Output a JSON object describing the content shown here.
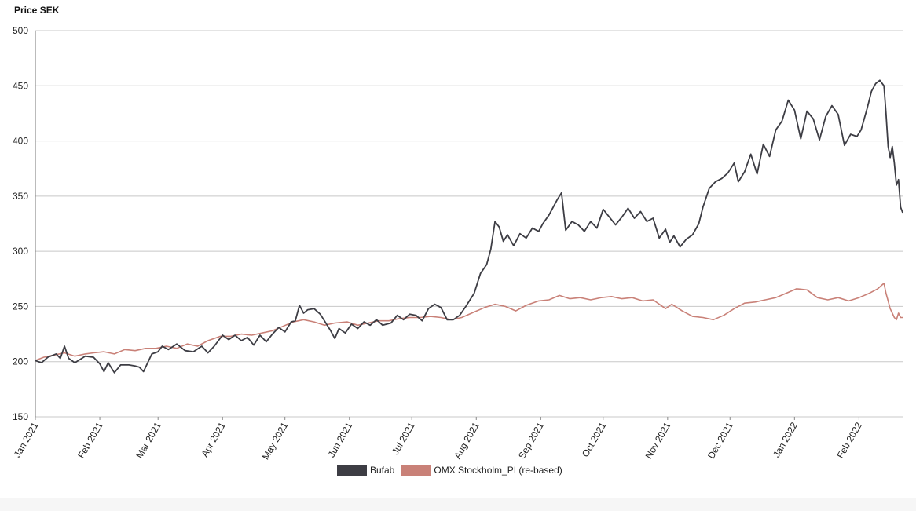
{
  "chart_data": {
    "type": "line",
    "title": "",
    "ylabel": "Price SEK",
    "xlabel": "",
    "ylim": [
      150,
      500
    ],
    "yticks": [
      150,
      200,
      250,
      300,
      350,
      400,
      450,
      500
    ],
    "xlim": [
      "2021-01-01",
      "2022-02-22"
    ],
    "xticks": [
      {
        "date": "2021-01-01",
        "label": "Jan 2021"
      },
      {
        "date": "2021-02-01",
        "label": "Feb 2021"
      },
      {
        "date": "2021-03-01",
        "label": "Mar 2021"
      },
      {
        "date": "2021-04-01",
        "label": "Apr 2021"
      },
      {
        "date": "2021-05-01",
        "label": "May 2021"
      },
      {
        "date": "2021-06-01",
        "label": "Jun 2021"
      },
      {
        "date": "2021-07-01",
        "label": "Jul 2021"
      },
      {
        "date": "2021-08-01",
        "label": "Aug 2021"
      },
      {
        "date": "2021-09-01",
        "label": "Sep 2021"
      },
      {
        "date": "2021-10-01",
        "label": "Oct 2021"
      },
      {
        "date": "2021-11-01",
        "label": "Nov 2021"
      },
      {
        "date": "2021-12-01",
        "label": "Dec 2021"
      },
      {
        "date": "2022-01-01",
        "label": "Jan 2022"
      },
      {
        "date": "2022-02-01",
        "label": "Feb 2022"
      }
    ],
    "grid": true,
    "legend_position": "bottom-center",
    "series": [
      {
        "name": "Bufab",
        "color": "#3d3d44",
        "points": [
          [
            "2021-01-01",
            201
          ],
          [
            "2021-01-04",
            199
          ],
          [
            "2021-01-07",
            204
          ],
          [
            "2021-01-11",
            207
          ],
          [
            "2021-01-13",
            203
          ],
          [
            "2021-01-15",
            214
          ],
          [
            "2021-01-17",
            203
          ],
          [
            "2021-01-20",
            199
          ],
          [
            "2021-01-25",
            205
          ],
          [
            "2021-01-29",
            204
          ],
          [
            "2021-02-01",
            198
          ],
          [
            "2021-02-03",
            191
          ],
          [
            "2021-02-05",
            199
          ],
          [
            "2021-02-08",
            190
          ],
          [
            "2021-02-11",
            197
          ],
          [
            "2021-02-15",
            197
          ],
          [
            "2021-02-18",
            196
          ],
          [
            "2021-02-20",
            195
          ],
          [
            "2021-02-22",
            191
          ],
          [
            "2021-02-24",
            199
          ],
          [
            "2021-02-26",
            207
          ],
          [
            "2021-03-01",
            209
          ],
          [
            "2021-03-03",
            214
          ],
          [
            "2021-03-06",
            211
          ],
          [
            "2021-03-10",
            216
          ],
          [
            "2021-03-14",
            210
          ],
          [
            "2021-03-18",
            209
          ],
          [
            "2021-03-22",
            214
          ],
          [
            "2021-03-25",
            208
          ],
          [
            "2021-03-28",
            214
          ],
          [
            "2021-04-01",
            224
          ],
          [
            "2021-04-04",
            220
          ],
          [
            "2021-04-07",
            224
          ],
          [
            "2021-04-10",
            219
          ],
          [
            "2021-04-13",
            222
          ],
          [
            "2021-04-16",
            215
          ],
          [
            "2021-04-19",
            224
          ],
          [
            "2021-04-22",
            218
          ],
          [
            "2021-04-25",
            225
          ],
          [
            "2021-04-28",
            231
          ],
          [
            "2021-05-01",
            227
          ],
          [
            "2021-05-04",
            236
          ],
          [
            "2021-05-06",
            237
          ],
          [
            "2021-05-08",
            251
          ],
          [
            "2021-05-10",
            244
          ],
          [
            "2021-05-12",
            247
          ],
          [
            "2021-05-15",
            248
          ],
          [
            "2021-05-18",
            243
          ],
          [
            "2021-05-20",
            237
          ],
          [
            "2021-05-23",
            228
          ],
          [
            "2021-05-25",
            221
          ],
          [
            "2021-05-27",
            230
          ],
          [
            "2021-05-30",
            226
          ],
          [
            "2021-06-02",
            234
          ],
          [
            "2021-06-05",
            230
          ],
          [
            "2021-06-08",
            236
          ],
          [
            "2021-06-11",
            233
          ],
          [
            "2021-06-14",
            238
          ],
          [
            "2021-06-17",
            233
          ],
          [
            "2021-06-21",
            235
          ],
          [
            "2021-06-24",
            242
          ],
          [
            "2021-06-27",
            238
          ],
          [
            "2021-06-30",
            243
          ],
          [
            "2021-07-03",
            242
          ],
          [
            "2021-07-06",
            237
          ],
          [
            "2021-07-09",
            248
          ],
          [
            "2021-07-12",
            252
          ],
          [
            "2021-07-15",
            249
          ],
          [
            "2021-07-18",
            238
          ],
          [
            "2021-07-21",
            238
          ],
          [
            "2021-07-24",
            242
          ],
          [
            "2021-07-27",
            250
          ],
          [
            "2021-07-31",
            262
          ],
          [
            "2021-08-03",
            280
          ],
          [
            "2021-08-06",
            288
          ],
          [
            "2021-08-08",
            302
          ],
          [
            "2021-08-10",
            327
          ],
          [
            "2021-08-12",
            322
          ],
          [
            "2021-08-14",
            309
          ],
          [
            "2021-08-16",
            315
          ],
          [
            "2021-08-19",
            305
          ],
          [
            "2021-08-22",
            316
          ],
          [
            "2021-08-25",
            312
          ],
          [
            "2021-08-28",
            321
          ],
          [
            "2021-08-31",
            318
          ],
          [
            "2021-09-02",
            325
          ],
          [
            "2021-09-05",
            333
          ],
          [
            "2021-09-07",
            340
          ],
          [
            "2021-09-09",
            347
          ],
          [
            "2021-09-11",
            353
          ],
          [
            "2021-09-13",
            319
          ],
          [
            "2021-09-16",
            327
          ],
          [
            "2021-09-19",
            324
          ],
          [
            "2021-09-22",
            318
          ],
          [
            "2021-09-25",
            327
          ],
          [
            "2021-09-28",
            321
          ],
          [
            "2021-10-01",
            338
          ],
          [
            "2021-10-04",
            331
          ],
          [
            "2021-10-07",
            324
          ],
          [
            "2021-10-10",
            331
          ],
          [
            "2021-10-13",
            339
          ],
          [
            "2021-10-16",
            330
          ],
          [
            "2021-10-19",
            336
          ],
          [
            "2021-10-22",
            327
          ],
          [
            "2021-10-25",
            330
          ],
          [
            "2021-10-28",
            312
          ],
          [
            "2021-10-31",
            320
          ],
          [
            "2021-11-02",
            308
          ],
          [
            "2021-11-04",
            314
          ],
          [
            "2021-11-07",
            304
          ],
          [
            "2021-11-10",
            311
          ],
          [
            "2021-11-13",
            315
          ],
          [
            "2021-11-16",
            325
          ],
          [
            "2021-11-18",
            340
          ],
          [
            "2021-11-21",
            357
          ],
          [
            "2021-11-24",
            363
          ],
          [
            "2021-11-27",
            366
          ],
          [
            "2021-11-30",
            371
          ],
          [
            "2021-12-03",
            380
          ],
          [
            "2021-12-05",
            363
          ],
          [
            "2021-12-08",
            372
          ],
          [
            "2021-12-11",
            388
          ],
          [
            "2021-12-14",
            370
          ],
          [
            "2021-12-17",
            397
          ],
          [
            "2021-12-20",
            386
          ],
          [
            "2021-12-23",
            410
          ],
          [
            "2021-12-26",
            418
          ],
          [
            "2021-12-29",
            437
          ],
          [
            "2022-01-01",
            428
          ],
          [
            "2022-01-04",
            402
          ],
          [
            "2022-01-07",
            427
          ],
          [
            "2022-01-10",
            420
          ],
          [
            "2022-01-13",
            401
          ],
          [
            "2022-01-16",
            422
          ],
          [
            "2022-01-19",
            432
          ],
          [
            "2022-01-22",
            424
          ],
          [
            "2022-01-25",
            396
          ],
          [
            "2022-01-28",
            406
          ],
          [
            "2022-01-31",
            404
          ],
          [
            "2022-02-02",
            410
          ],
          [
            "2022-02-05",
            430
          ],
          [
            "2022-02-07",
            445
          ],
          [
            "2022-02-09",
            452
          ],
          [
            "2022-02-11",
            455
          ],
          [
            "2022-02-13",
            450
          ],
          [
            "2022-02-14",
            425
          ],
          [
            "2022-02-15",
            395
          ],
          [
            "2022-02-16",
            385
          ],
          [
            "2022-02-17",
            395
          ],
          [
            "2022-02-18",
            380
          ],
          [
            "2022-02-19",
            360
          ],
          [
            "2022-02-20",
            365
          ],
          [
            "2022-02-21",
            340
          ],
          [
            "2022-02-22",
            335
          ]
        ]
      },
      {
        "name": "OMX Stockholm_PI (re-based)",
        "color": "#c98178",
        "points": [
          [
            "2021-01-01",
            201
          ],
          [
            "2021-01-05",
            204
          ],
          [
            "2021-01-10",
            206
          ],
          [
            "2021-01-15",
            208
          ],
          [
            "2021-01-20",
            205
          ],
          [
            "2021-01-25",
            207
          ],
          [
            "2021-01-29",
            208
          ],
          [
            "2021-02-03",
            209
          ],
          [
            "2021-02-08",
            207
          ],
          [
            "2021-02-13",
            211
          ],
          [
            "2021-02-18",
            210
          ],
          [
            "2021-02-23",
            212
          ],
          [
            "2021-02-28",
            212
          ],
          [
            "2021-03-05",
            214
          ],
          [
            "2021-03-10",
            212
          ],
          [
            "2021-03-15",
            216
          ],
          [
            "2021-03-20",
            214
          ],
          [
            "2021-03-25",
            219
          ],
          [
            "2021-03-31",
            223
          ],
          [
            "2021-04-05",
            223
          ],
          [
            "2021-04-10",
            225
          ],
          [
            "2021-04-15",
            224
          ],
          [
            "2021-04-20",
            226
          ],
          [
            "2021-04-25",
            228
          ],
          [
            "2021-04-30",
            232
          ],
          [
            "2021-05-05",
            236
          ],
          [
            "2021-05-10",
            238
          ],
          [
            "2021-05-15",
            236
          ],
          [
            "2021-05-20",
            233
          ],
          [
            "2021-05-25",
            235
          ],
          [
            "2021-05-31",
            236
          ],
          [
            "2021-06-05",
            233
          ],
          [
            "2021-06-10",
            235
          ],
          [
            "2021-06-15",
            237
          ],
          [
            "2021-06-20",
            237
          ],
          [
            "2021-06-25",
            239
          ],
          [
            "2021-06-30",
            240
          ],
          [
            "2021-07-05",
            240
          ],
          [
            "2021-07-10",
            241
          ],
          [
            "2021-07-15",
            240
          ],
          [
            "2021-07-20",
            238
          ],
          [
            "2021-07-25",
            240
          ],
          [
            "2021-07-31",
            245
          ],
          [
            "2021-08-05",
            249
          ],
          [
            "2021-08-10",
            252
          ],
          [
            "2021-08-15",
            250
          ],
          [
            "2021-08-20",
            246
          ],
          [
            "2021-08-25",
            251
          ],
          [
            "2021-08-31",
            255
          ],
          [
            "2021-09-05",
            256
          ],
          [
            "2021-09-10",
            260
          ],
          [
            "2021-09-15",
            257
          ],
          [
            "2021-09-20",
            258
          ],
          [
            "2021-09-25",
            256
          ],
          [
            "2021-09-30",
            258
          ],
          [
            "2021-10-05",
            259
          ],
          [
            "2021-10-10",
            257
          ],
          [
            "2021-10-15",
            258
          ],
          [
            "2021-10-20",
            255
          ],
          [
            "2021-10-25",
            256
          ],
          [
            "2021-10-31",
            248
          ],
          [
            "2021-11-03",
            252
          ],
          [
            "2021-11-08",
            246
          ],
          [
            "2021-11-13",
            241
          ],
          [
            "2021-11-18",
            240
          ],
          [
            "2021-11-23",
            238
          ],
          [
            "2021-11-28",
            242
          ],
          [
            "2021-12-03",
            248
          ],
          [
            "2021-12-08",
            253
          ],
          [
            "2021-12-13",
            254
          ],
          [
            "2021-12-18",
            256
          ],
          [
            "2021-12-23",
            258
          ],
          [
            "2021-12-28",
            262
          ],
          [
            "2022-01-02",
            266
          ],
          [
            "2022-01-07",
            265
          ],
          [
            "2022-01-12",
            258
          ],
          [
            "2022-01-17",
            256
          ],
          [
            "2022-01-22",
            258
          ],
          [
            "2022-01-27",
            255
          ],
          [
            "2022-02-01",
            258
          ],
          [
            "2022-02-06",
            262
          ],
          [
            "2022-02-10",
            266
          ],
          [
            "2022-02-13",
            271
          ],
          [
            "2022-02-14",
            262
          ],
          [
            "2022-02-15",
            255
          ],
          [
            "2022-02-16",
            248
          ],
          [
            "2022-02-17",
            244
          ],
          [
            "2022-02-18",
            240
          ],
          [
            "2022-02-19",
            238
          ],
          [
            "2022-02-20",
            244
          ],
          [
            "2022-02-21",
            240
          ],
          [
            "2022-02-22",
            240
          ]
        ]
      }
    ]
  }
}
